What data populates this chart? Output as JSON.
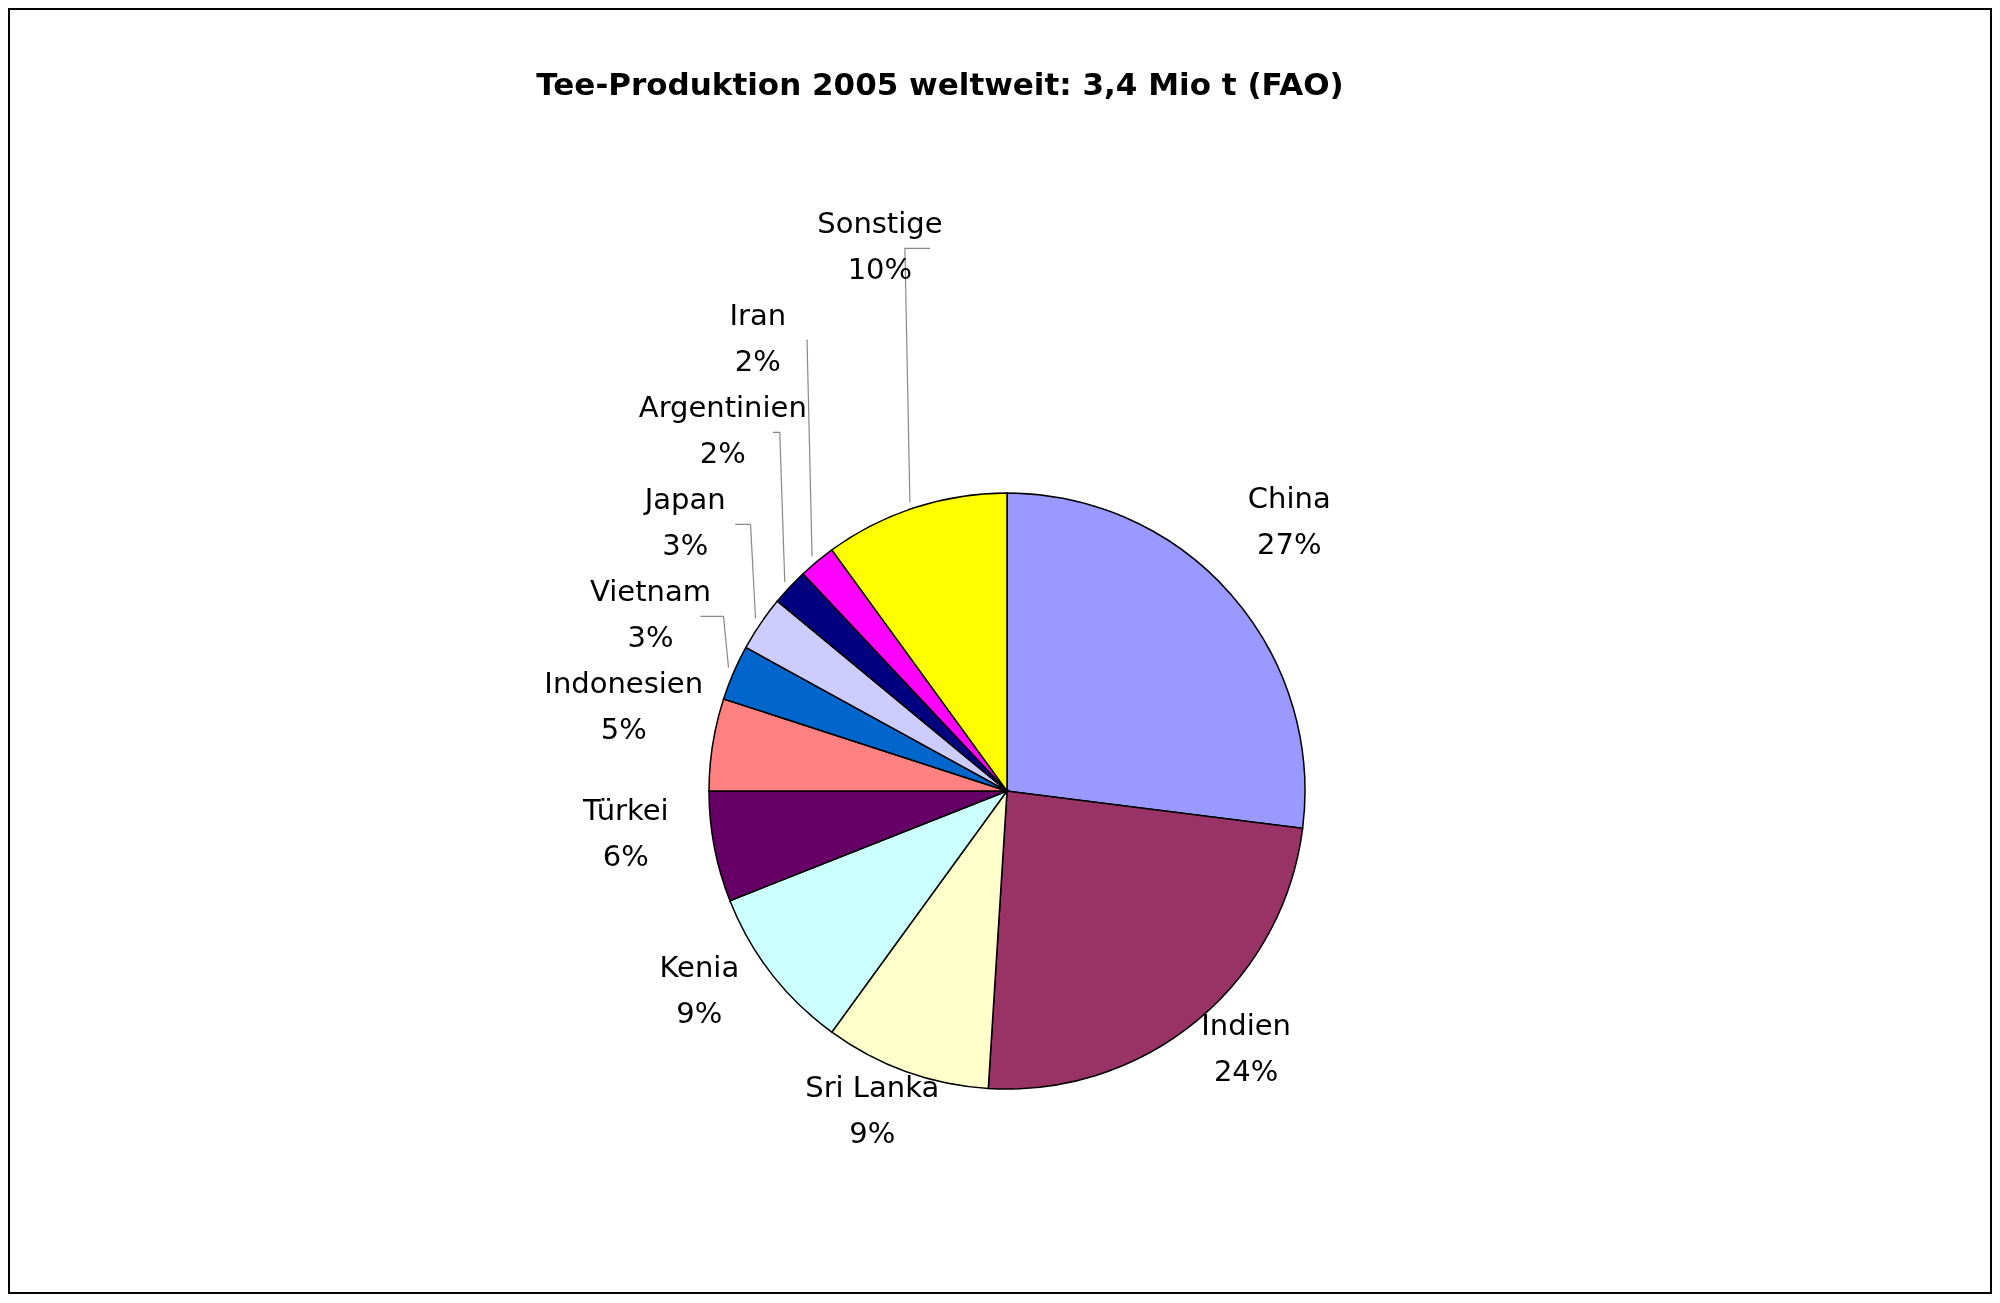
{
  "chart_data": {
    "type": "pie",
    "title": "Tee-Produktion 2005 weltweit: 3,4 Mio t (FAO)",
    "categories": [
      "China",
      "Indien",
      "Sri Lanka",
      "Kenia",
      "Türkei",
      "Indonesien",
      "Vietnam",
      "Japan",
      "Argentinien",
      "Iran",
      "Sonstige"
    ],
    "values": [
      27,
      24,
      9,
      9,
      6,
      5,
      3,
      3,
      2,
      2,
      10
    ],
    "value_labels": [
      "27%",
      "24%",
      "9%",
      "9%",
      "6%",
      "5%",
      "3%",
      "3%",
      "2%",
      "2%",
      "10%"
    ],
    "colors": [
      "#9999ff",
      "#993366",
      "#ffffcc",
      "#ccffff",
      "#660066",
      "#ff8080",
      "#0066cc",
      "#ccccff",
      "#000080",
      "#ff00ff",
      "#ffff00"
    ],
    "legend": false
  }
}
